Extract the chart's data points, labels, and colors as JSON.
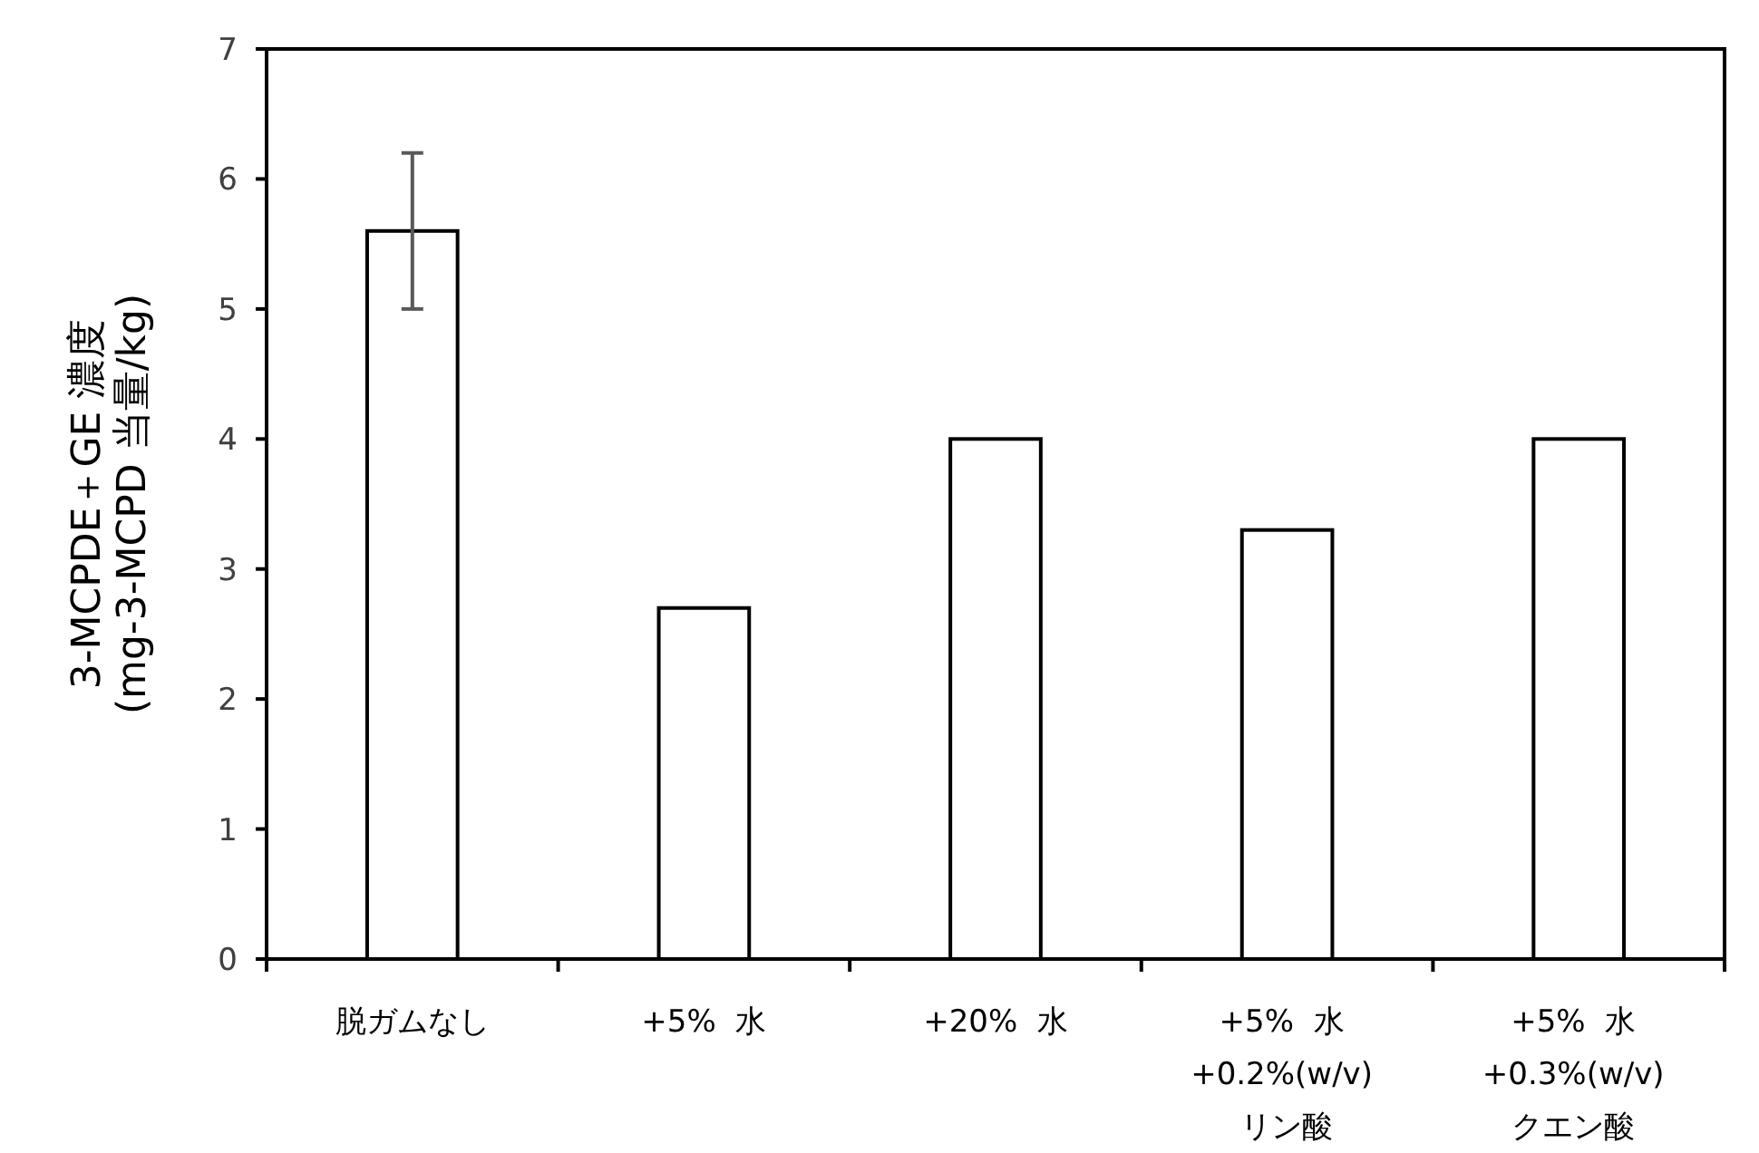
{
  "chart_data": {
    "type": "bar",
    "ylabel": "3-MCPDE＋GE 濃度\n(mg-3-MCPD 当量/kg)",
    "categories": [
      "脱ガムなし",
      "+5%  水",
      "+20%  水",
      "+5%  水\n+0.2%(w/v)\n リン酸",
      "+5%  水\n+0.3%(w/v)\nクエン酸"
    ],
    "values": [
      5.6,
      2.7,
      4.0,
      3.3,
      4.0
    ],
    "errors": [
      [
        5.0,
        6.2
      ],
      null,
      null,
      null,
      null
    ],
    "color": "#ffffff",
    "ylim": [
      0,
      7
    ],
    "yticks": [
      0,
      1,
      2,
      3,
      4,
      5,
      6,
      7
    ],
    "grid": false
  }
}
